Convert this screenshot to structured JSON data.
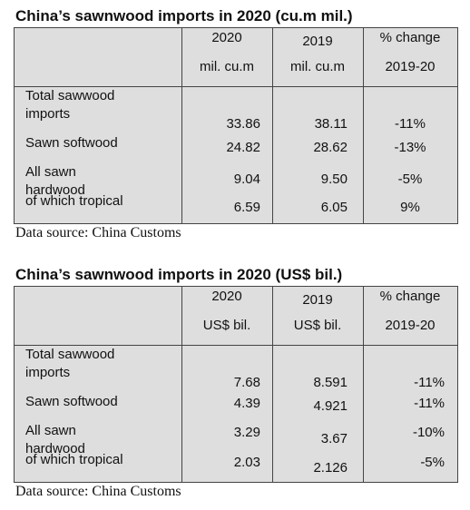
{
  "tables": [
    {
      "title": "China’s sawnwood imports in 2020 (cu.m mil.)",
      "header": [
        [
          "2020",
          "mil. cu.m"
        ],
        [
          "2019",
          "mil. cu.m"
        ],
        [
          "% change",
          "2019-20"
        ]
      ],
      "rows": [
        {
          "label": "Total sawwood imports",
          "values": [
            "33.86",
            "38.11",
            "-11%"
          ]
        },
        {
          "label": "Sawn softwood",
          "values": [
            "24.82",
            "28.62",
            "-13%"
          ]
        },
        {
          "label": "All sawn hardwood",
          "values": [
            "9.04",
            "9.50",
            "-5%"
          ]
        },
        {
          "label": "of which tropical",
          "values": [
            "6.59",
            "6.05",
            "9%"
          ]
        }
      ],
      "source": "Data source: China Customs"
    },
    {
      "title": "China’s sawnwood imports in 2020 (US$ bil.)",
      "header": [
        [
          "2020",
          "US$ bil."
        ],
        [
          "2019",
          "US$ bil."
        ],
        [
          "% change",
          "2019-20"
        ]
      ],
      "rows": [
        {
          "label": "Total sawwood imports",
          "values": [
            "7.68",
            "8.591",
            "-11%"
          ]
        },
        {
          "label": "Sawn softwood",
          "values": [
            "4.39",
            "4.921",
            "-11%"
          ]
        },
        {
          "label": "All sawn hardwood",
          "values": [
            "3.29",
            "3.67",
            "-10%"
          ]
        },
        {
          "label": "of which tropical",
          "values": [
            "2.03",
            "2.126",
            "-5%"
          ]
        }
      ],
      "source": "Data source: China Customs"
    }
  ]
}
